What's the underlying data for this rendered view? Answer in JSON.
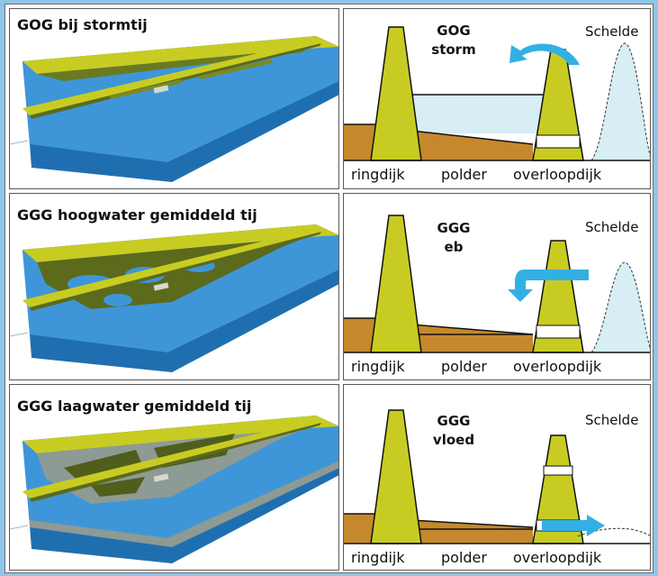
{
  "rows": [
    {
      "left_title": "GOG bij stormtij",
      "tag_line1": "GOG",
      "tag_line2": "storm",
      "river_label": "Schelde"
    },
    {
      "left_title": "GGG hoogwater gemiddeld tij",
      "tag_line1": "GGG",
      "tag_line2": "eb",
      "river_label": "Schelde"
    },
    {
      "left_title": "GGG laagwater gemiddeld tij",
      "tag_line1": "GGG",
      "tag_line2": "vloed",
      "river_label": "Schelde"
    }
  ],
  "axis_labels": {
    "ring": "ringdijk",
    "polder": "polder",
    "overflow": "overloopdijk"
  },
  "colors": {
    "dike": "#c8cc22",
    "soil": "#c5882c",
    "water": "#2f8fd0",
    "light_water": "#d6eef4",
    "arrow": "#33b0e3",
    "background": "#8fc6e8"
  }
}
